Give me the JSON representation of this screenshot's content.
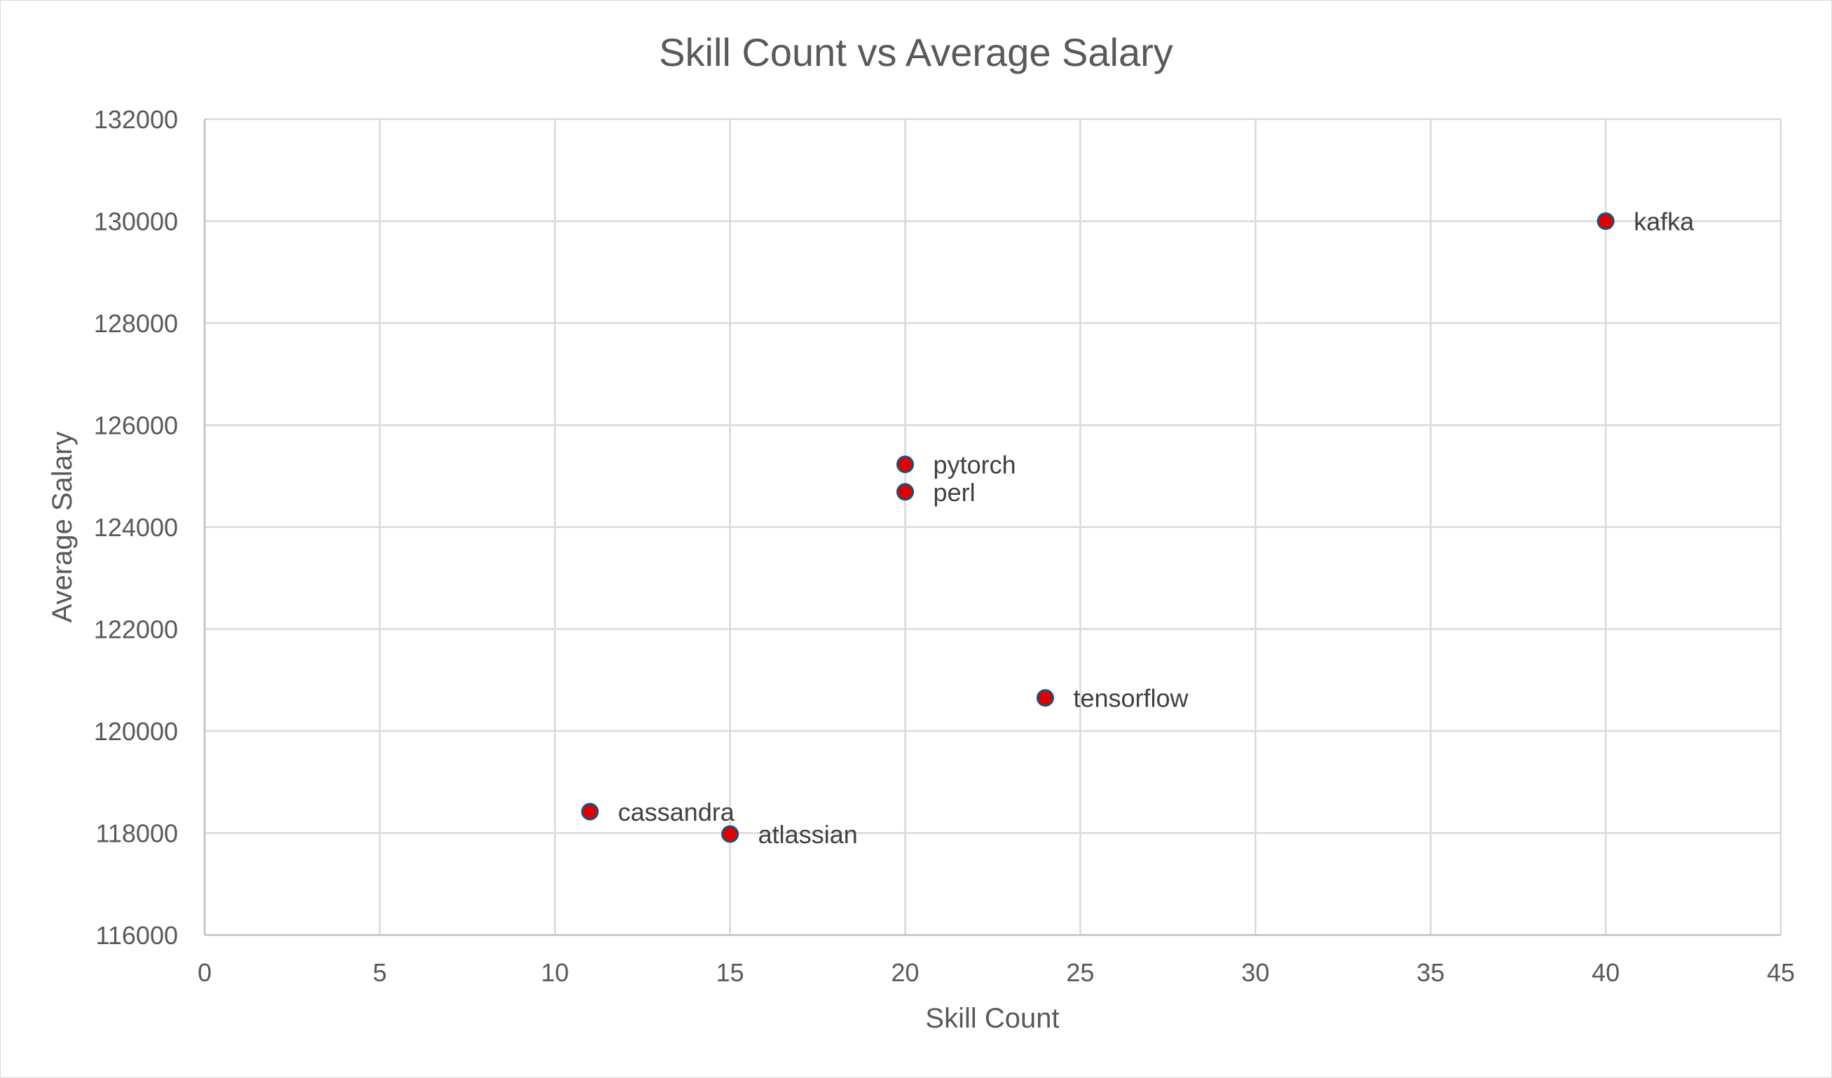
{
  "chart_data": {
    "type": "scatter",
    "title": "Skill Count vs Average Salary",
    "xlabel": "Skill Count",
    "ylabel": "Average Salary",
    "xlim": [
      0,
      45
    ],
    "ylim": [
      116000,
      132000
    ],
    "x_ticks": [
      0,
      5,
      10,
      15,
      20,
      25,
      30,
      35,
      40,
      45
    ],
    "y_ticks": [
      116000,
      118000,
      120000,
      122000,
      124000,
      126000,
      128000,
      130000,
      132000
    ],
    "grid": true,
    "legend": "none",
    "marker_color": "#e00000",
    "marker_edge_color": "#1f4e79",
    "points": [
      {
        "label": "kafka",
        "x": 40,
        "y": 130000
      },
      {
        "label": "pytorch",
        "x": 20,
        "y": 125230
      },
      {
        "label": "perl",
        "x": 20,
        "y": 124690
      },
      {
        "label": "tensorflow",
        "x": 24,
        "y": 120650
      },
      {
        "label": "cassandra",
        "x": 11,
        "y": 118420
      },
      {
        "label": "atlassian",
        "x": 15,
        "y": 117980
      }
    ]
  }
}
